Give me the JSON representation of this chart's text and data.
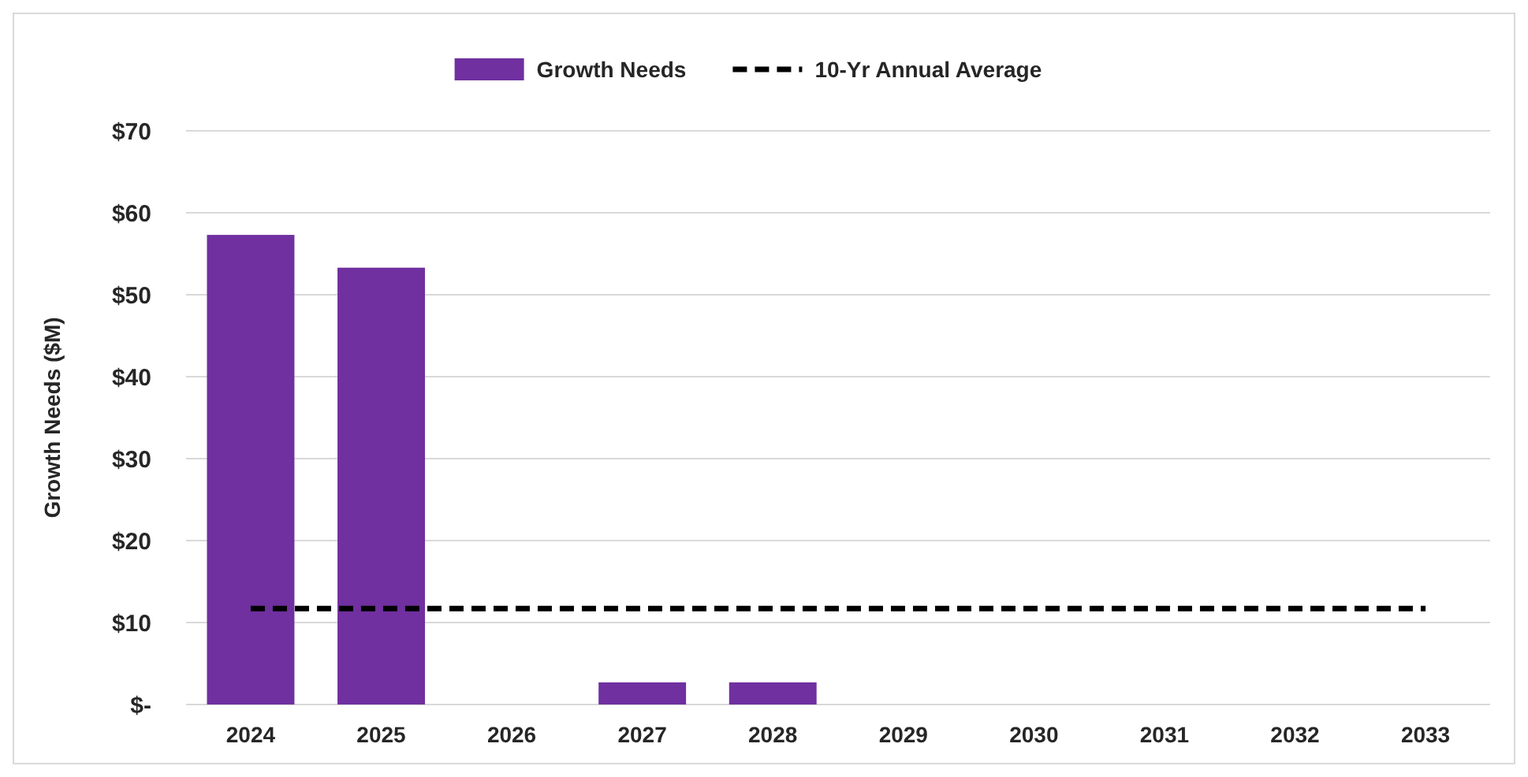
{
  "chart_data": {
    "type": "bar",
    "ylabel": "Growth Needs ($M)",
    "categories": [
      "2024",
      "2025",
      "2026",
      "2027",
      "2028",
      "2029",
      "2030",
      "2031",
      "2032",
      "2033"
    ],
    "series": [
      {
        "name": "Growth Needs",
        "color": "#7030a0",
        "values": [
          57.3,
          53.3,
          0,
          2.7,
          2.7,
          0,
          0,
          0,
          0,
          0
        ]
      },
      {
        "name": "10-Yr Annual Average",
        "type": "line",
        "color": "#000000",
        "line_style": "dashed",
        "marker": "none",
        "values": [
          11.7,
          11.7,
          11.7,
          11.7,
          11.7,
          11.7,
          11.7,
          11.7,
          11.7,
          11.7
        ]
      }
    ],
    "ylim": [
      0,
      70
    ],
    "yticks": [
      {
        "value": 0,
        "label": "$-"
      },
      {
        "value": 10,
        "label": "$10"
      },
      {
        "value": 20,
        "label": "$20"
      },
      {
        "value": 30,
        "label": "$30"
      },
      {
        "value": 40,
        "label": "$40"
      },
      {
        "value": 50,
        "label": "$50"
      },
      {
        "value": 60,
        "label": "$60"
      },
      {
        "value": 70,
        "label": "$70"
      }
    ],
    "grid": "y",
    "legend": "top"
  }
}
